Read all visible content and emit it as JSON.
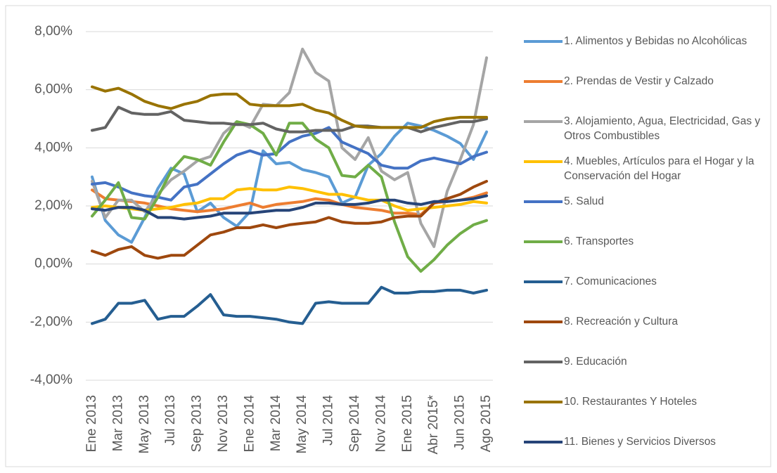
{
  "chart_data": {
    "type": "line",
    "categories": [
      "Ene 2013",
      null,
      "Mar 2013",
      null,
      "May 2013",
      null,
      "Jul 2013",
      null,
      "Sep 2013",
      null,
      "Nov 2013",
      null,
      "Ene 2014",
      null,
      "Mar 2014",
      null,
      "May 2014",
      null,
      "Jul 2014",
      null,
      "Sep 2014",
      null,
      "Nov 2014",
      null,
      "Ene 2015",
      null,
      "Abr 2015*",
      null,
      "Jun 2015",
      null,
      "Ago 2015"
    ],
    "ylim": [
      -4,
      8
    ],
    "yticks": [
      {
        "value": -4,
        "label": "-4,00%"
      },
      {
        "value": -2,
        "label": "-2,00%"
      },
      {
        "value": 0,
        "label": "0,00%"
      },
      {
        "value": 2,
        "label": "2,00%"
      },
      {
        "value": 4,
        "label": "4,00%"
      },
      {
        "value": 6,
        "label": "6,00%"
      },
      {
        "value": 8,
        "label": "8,00%"
      }
    ],
    "grid": true,
    "legend": "right",
    "series": [
      {
        "name": "1. Alimentos y Bebidas no Alcohólicas",
        "color": "#5b9bd5",
        "values": [
          3.0,
          1.5,
          1.0,
          0.75,
          1.6,
          2.6,
          3.3,
          3.1,
          1.8,
          2.1,
          1.6,
          1.3,
          1.8,
          3.9,
          3.45,
          3.5,
          3.25,
          3.15,
          3.0,
          2.1,
          2.3,
          3.4,
          3.8,
          4.4,
          4.85,
          4.75,
          4.6,
          4.4,
          4.15,
          3.6,
          4.55
        ]
      },
      {
        "name": "2. Prendas de Vestir y Calzado",
        "color": "#ed7d31",
        "values": [
          2.55,
          2.25,
          2.2,
          2.15,
          2.1,
          2.0,
          1.9,
          1.85,
          1.8,
          1.85,
          1.9,
          2.0,
          2.1,
          1.95,
          2.05,
          2.1,
          2.15,
          2.25,
          2.2,
          2.05,
          1.95,
          1.9,
          1.85,
          1.75,
          1.75,
          1.7,
          2.1,
          2.15,
          2.2,
          2.3,
          2.45
        ]
      },
      {
        "name": "3. Alojamiento, Agua, Electricidad, Gas y Otros Combustibles",
        "color": "#a5a5a5",
        "values": [
          2.85,
          1.6,
          2.2,
          2.2,
          1.8,
          2.4,
          2.9,
          3.2,
          3.55,
          3.7,
          4.5,
          4.9,
          4.7,
          5.5,
          5.45,
          5.9,
          7.4,
          6.6,
          6.3,
          4.0,
          3.6,
          4.35,
          3.2,
          2.9,
          3.15,
          1.4,
          0.6,
          2.5,
          3.6,
          4.8,
          7.1
        ]
      },
      {
        "name": "4. Muebles, Artículos para el Hogar y la Conservación del Hogar",
        "color": "#ffc000",
        "values": [
          1.95,
          2.0,
          1.95,
          1.9,
          1.85,
          1.9,
          1.95,
          2.05,
          2.1,
          2.25,
          2.25,
          2.55,
          2.6,
          2.55,
          2.55,
          2.65,
          2.6,
          2.5,
          2.4,
          2.4,
          2.3,
          2.2,
          2.2,
          2.0,
          1.85,
          1.9,
          1.95,
          2.0,
          2.05,
          2.15,
          2.1
        ]
      },
      {
        "name": "5. Salud",
        "color": "#4472c4",
        "values": [
          2.75,
          2.8,
          2.65,
          2.45,
          2.35,
          2.3,
          2.2,
          2.65,
          2.75,
          3.1,
          3.45,
          3.75,
          3.9,
          3.75,
          3.8,
          4.2,
          4.4,
          4.5,
          4.7,
          4.2,
          4.0,
          3.8,
          3.4,
          3.3,
          3.3,
          3.55,
          3.65,
          3.55,
          3.45,
          3.7,
          3.85
        ]
      },
      {
        "name": "6. Transportes",
        "color": "#70ad47",
        "values": [
          1.65,
          2.2,
          2.8,
          1.6,
          1.55,
          2.3,
          3.2,
          3.7,
          3.6,
          3.4,
          4.2,
          4.9,
          4.8,
          4.5,
          3.75,
          4.85,
          4.85,
          4.3,
          4.0,
          3.05,
          3.0,
          3.4,
          3.0,
          1.45,
          0.25,
          -0.25,
          0.15,
          0.65,
          1.05,
          1.35,
          1.5
        ]
      },
      {
        "name": "7. Comunicaciones",
        "color": "#255e91",
        "values": [
          -2.05,
          -1.9,
          -1.35,
          -1.35,
          -1.25,
          -1.9,
          -1.8,
          -1.8,
          -1.45,
          -1.05,
          -1.75,
          -1.8,
          -1.8,
          -1.85,
          -1.9,
          -2.0,
          -2.05,
          -1.35,
          -1.3,
          -1.35,
          -1.35,
          -1.35,
          -0.8,
          -1.0,
          -1.0,
          -0.95,
          -0.95,
          -0.9,
          -0.9,
          -1.0,
          -0.9
        ]
      },
      {
        "name": "8. Recreación y Cultura",
        "color": "#9e480e",
        "values": [
          0.45,
          0.3,
          0.5,
          0.6,
          0.3,
          0.2,
          0.3,
          0.3,
          0.65,
          1.0,
          1.1,
          1.25,
          1.25,
          1.35,
          1.25,
          1.35,
          1.4,
          1.45,
          1.6,
          1.45,
          1.4,
          1.4,
          1.45,
          1.6,
          1.65,
          1.65,
          2.1,
          2.25,
          2.4,
          2.65,
          2.85
        ]
      },
      {
        "name": "9. Educación",
        "color": "#636363",
        "values": [
          4.6,
          4.7,
          5.4,
          5.2,
          5.15,
          5.15,
          5.25,
          4.95,
          4.9,
          4.85,
          4.85,
          4.8,
          4.8,
          4.85,
          4.65,
          4.55,
          4.55,
          4.6,
          4.6,
          4.6,
          4.75,
          4.75,
          4.7,
          4.7,
          4.7,
          4.55,
          4.7,
          4.8,
          4.9,
          4.9,
          5.0
        ]
      },
      {
        "name": "10. Restaurantes Y Hoteles",
        "color": "#997300",
        "values": [
          6.1,
          5.95,
          6.05,
          5.85,
          5.6,
          5.45,
          5.35,
          5.5,
          5.6,
          5.8,
          5.85,
          5.85,
          5.5,
          5.45,
          5.45,
          5.45,
          5.5,
          5.3,
          5.2,
          4.95,
          4.75,
          4.7,
          4.7,
          4.7,
          4.7,
          4.7,
          4.9,
          5.0,
          5.05,
          5.05,
          5.05
        ]
      },
      {
        "name": "11. Bienes y Servicios Diversos",
        "color": "#264478",
        "values": [
          1.9,
          1.85,
          1.95,
          1.95,
          1.85,
          1.6,
          1.6,
          1.55,
          1.6,
          1.65,
          1.75,
          1.75,
          1.75,
          1.8,
          1.85,
          1.85,
          1.95,
          2.1,
          2.1,
          2.05,
          2.05,
          2.1,
          2.2,
          2.2,
          2.1,
          2.05,
          2.15,
          2.15,
          2.2,
          2.25,
          2.35
        ]
      }
    ]
  }
}
